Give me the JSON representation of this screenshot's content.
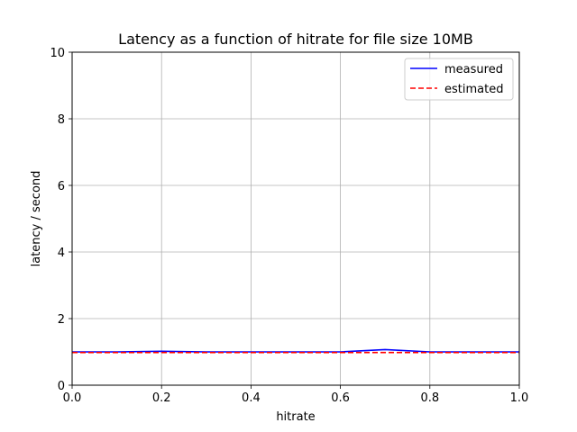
{
  "chart_data": {
    "type": "line",
    "title": "Latency as a function of hitrate for file size 10MB",
    "xlabel": "hitrate",
    "ylabel": "latency / second",
    "xlim": [
      0.0,
      1.0
    ],
    "ylim": [
      0,
      10
    ],
    "x_ticks": [
      "0.0",
      "0.2",
      "0.4",
      "0.6",
      "0.8",
      "1.0"
    ],
    "y_ticks": [
      "0",
      "2",
      "4",
      "6",
      "8",
      "10"
    ],
    "grid": true,
    "legend_position": "top-right",
    "series": [
      {
        "name": "measured",
        "color": "#0000ff",
        "style": "solid",
        "x": [
          0.0,
          0.1,
          0.2,
          0.3,
          0.4,
          0.5,
          0.6,
          0.7,
          0.8,
          0.9,
          1.0
        ],
        "y": [
          1.0,
          1.0,
          1.02,
          1.0,
          1.0,
          1.0,
          1.0,
          1.07,
          1.0,
          1.0,
          1.0
        ]
      },
      {
        "name": "estimated",
        "color": "#ff0000",
        "style": "dashed",
        "x": [
          0.0,
          0.1,
          0.2,
          0.3,
          0.4,
          0.5,
          0.6,
          0.7,
          0.8,
          0.9,
          1.0
        ],
        "y": [
          0.98,
          0.98,
          0.98,
          0.98,
          0.98,
          0.98,
          0.98,
          0.98,
          0.98,
          0.98,
          0.98
        ]
      }
    ]
  }
}
